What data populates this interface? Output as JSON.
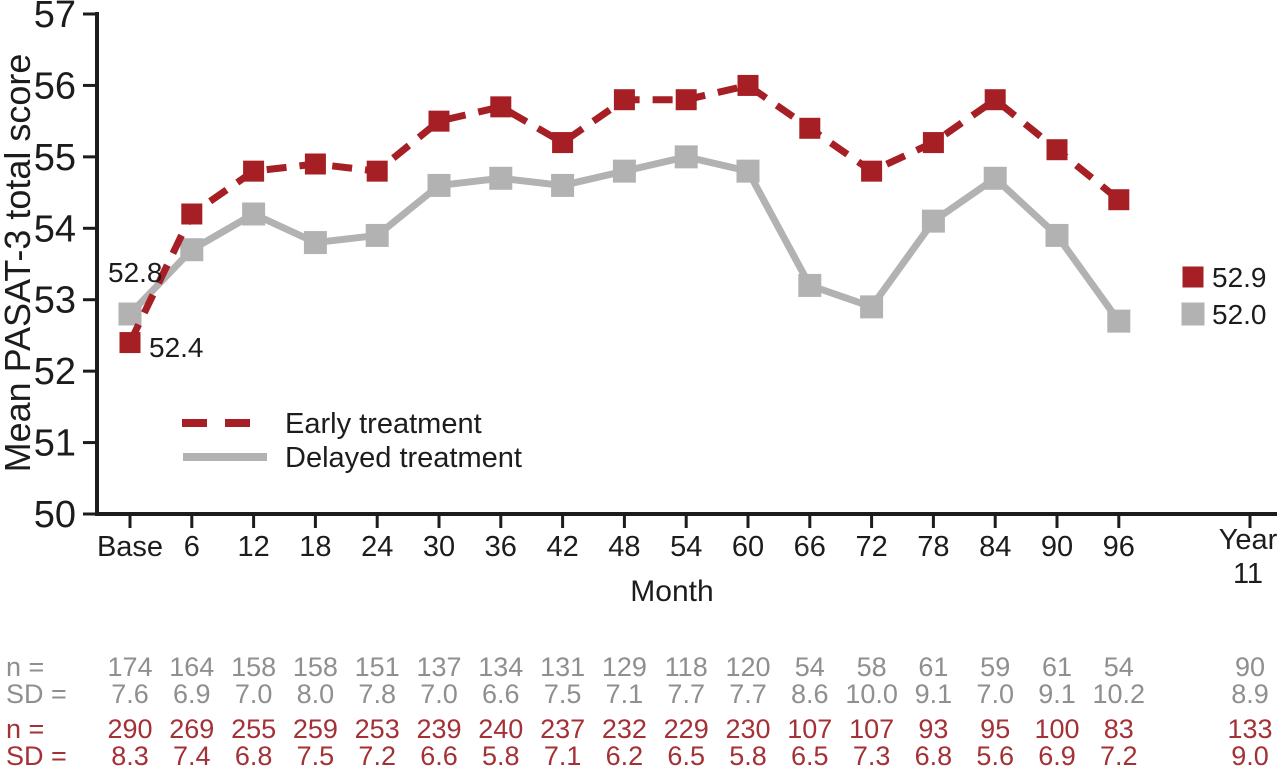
{
  "chart_data": {
    "type": "line",
    "title": "",
    "xlabel": "Month",
    "ylabel": "Mean PASAT-3 total score",
    "ylim": [
      50,
      57
    ],
    "yticks": [
      57,
      56,
      55,
      54,
      53,
      52,
      51,
      50
    ],
    "grid": false,
    "axis_color": "#1c1c1c",
    "categories": [
      "Base",
      "6",
      "12",
      "18",
      "24",
      "30",
      "36",
      "42",
      "48",
      "54",
      "60",
      "66",
      "72",
      "78",
      "84",
      "90",
      "96"
    ],
    "year11_label": [
      "Year",
      "11"
    ],
    "legend_position": "inside-lower-left",
    "series": [
      {
        "name": "Early treatment",
        "color": "#a51f24",
        "line_style": "dashed",
        "marker": "square",
        "values": [
          52.4,
          54.2,
          54.8,
          54.9,
          54.8,
          55.5,
          55.7,
          55.2,
          55.8,
          55.8,
          56.0,
          55.4,
          54.8,
          55.2,
          55.8,
          55.1,
          54.4
        ],
        "baseline_label": "52.4",
        "year11_value": "52.9"
      },
      {
        "name": "Delayed treatment",
        "color": "#b3b2b2",
        "line_style": "solid",
        "marker": "square",
        "values": [
          52.8,
          53.7,
          54.2,
          53.8,
          53.9,
          54.6,
          54.7,
          54.6,
          54.8,
          55.0,
          54.8,
          53.2,
          52.9,
          54.1,
          54.7,
          53.9,
          52.7
        ],
        "baseline_label": "52.8",
        "year11_value": "52.0"
      }
    ]
  },
  "table": {
    "rows": [
      {
        "label": "n =",
        "group": "delayed",
        "color": "#8f8f8f",
        "values": [
          "174",
          "164",
          "158",
          "158",
          "151",
          "137",
          "134",
          "131",
          "129",
          "118",
          "120",
          "54",
          "58",
          "61",
          "59",
          "61",
          "54"
        ],
        "year11": "90"
      },
      {
        "label": "SD =",
        "group": "delayed",
        "color": "#8f8f8f",
        "values": [
          "7.6",
          "6.9",
          "7.0",
          "8.0",
          "7.8",
          "7.0",
          "6.6",
          "7.5",
          "7.1",
          "7.7",
          "7.7",
          "8.6",
          "10.0",
          "9.1",
          "7.0",
          "9.1",
          "10.2"
        ],
        "year11": "8.9"
      },
      {
        "label": "n =",
        "group": "early",
        "color": "#a33136",
        "values": [
          "290",
          "269",
          "255",
          "259",
          "253",
          "239",
          "240",
          "237",
          "232",
          "229",
          "230",
          "107",
          "107",
          "93",
          "95",
          "100",
          "83"
        ],
        "year11": "133"
      },
      {
        "label": "SD =",
        "group": "early",
        "color": "#a33136",
        "values": [
          "8.3",
          "7.4",
          "6.8",
          "7.5",
          "7.2",
          "6.6",
          "5.8",
          "7.1",
          "6.2",
          "6.5",
          "5.8",
          "6.5",
          "7.3",
          "6.8",
          "5.6",
          "6.9",
          "7.2"
        ],
        "year11": "9.0"
      }
    ]
  }
}
